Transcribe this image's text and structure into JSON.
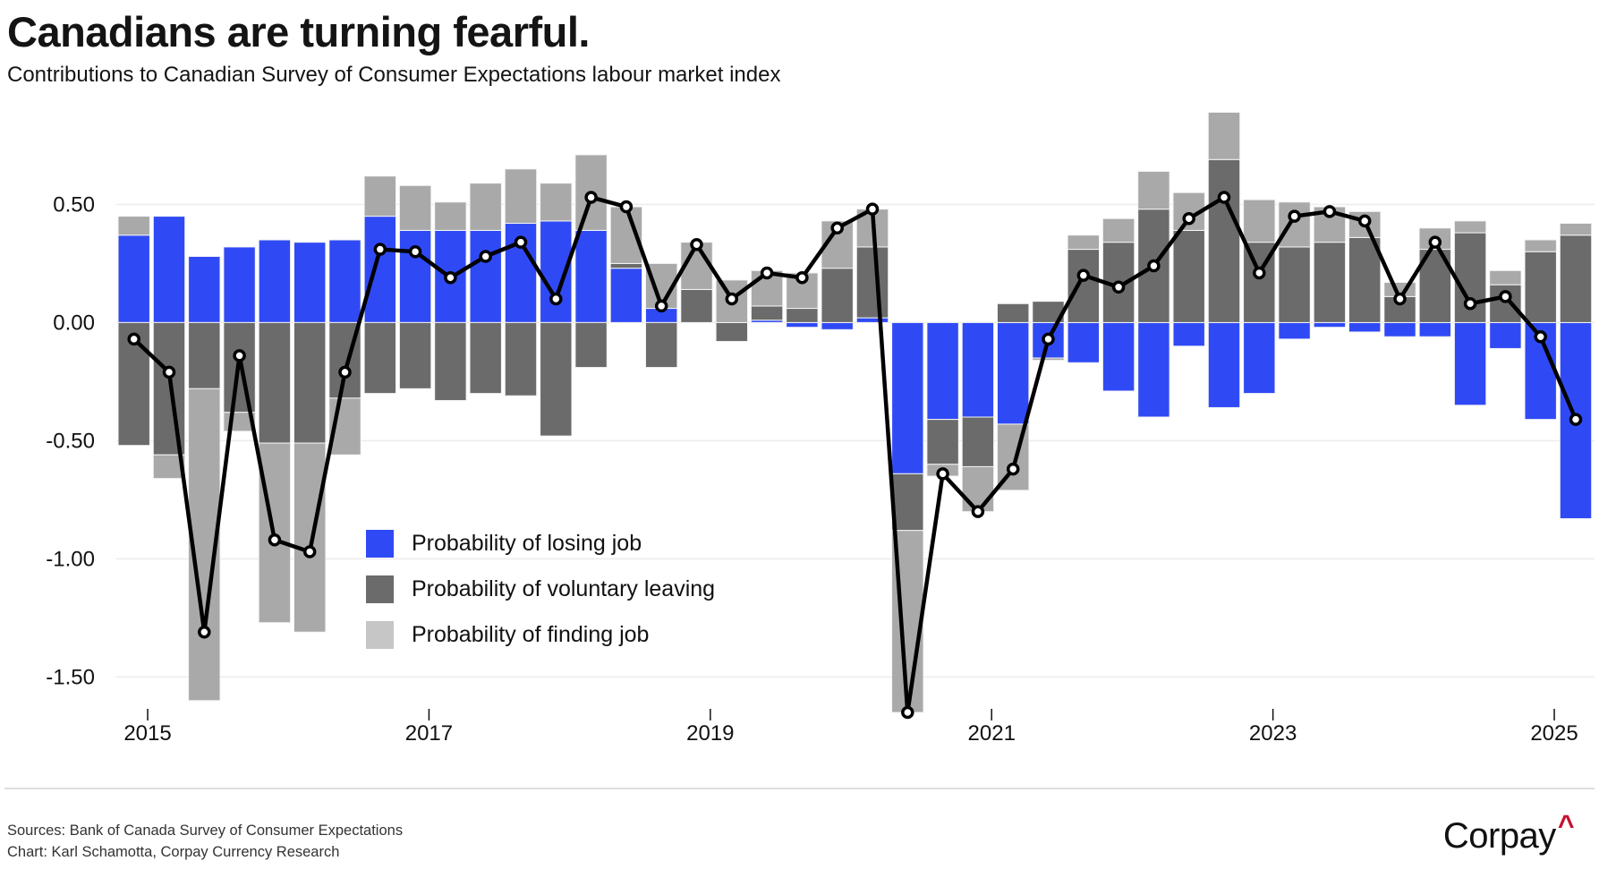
{
  "header": {
    "title": "Canadians are turning fearful.",
    "subtitle": "Contributions to Canadian Survey of Consumer Expectations labour market index"
  },
  "footer": {
    "sources": "Sources: Bank of Canada Survey of Consumer Expectations",
    "credit": "Chart: Karl Schamotta, Corpay Currency Research",
    "logo_text": "Corpay",
    "logo_mark": "^"
  },
  "colors": {
    "losing": "#2f4af5",
    "voluntary": "#6b6b6b",
    "finding": "#a9a9a9",
    "finding_legend": "#c6c6c6",
    "line": "#000000",
    "logo_accent": "#c8102e"
  },
  "chart_data": {
    "type": "bar",
    "stacked": true,
    "title": "Canadians are turning fearful.",
    "subtitle": "Contributions to Canadian Survey of Consumer Expectations labour market index",
    "xlabel": "",
    "ylabel": "",
    "ylim": [
      -1.65,
      0.9
    ],
    "yticks": [
      0.5,
      0.0,
      -0.5,
      -1.0,
      -1.5
    ],
    "ytick_labels": [
      "0.50",
      "0.00",
      "-0.50",
      "-1.00",
      "-1.50"
    ],
    "xtick_labels": [
      "2015",
      "2017",
      "2019",
      "2021",
      "2023",
      "2025"
    ],
    "xtick_positions_index": [
      0.39,
      8.39,
      16.39,
      24.39,
      32.39,
      40.39
    ],
    "grid": true,
    "legend_position": "center-left",
    "categories": [
      "2014Q4",
      "2015Q1",
      "2015Q2",
      "2015Q3",
      "2015Q4",
      "2016Q1",
      "2016Q2",
      "2016Q3",
      "2016Q4",
      "2017Q1",
      "2017Q2",
      "2017Q3",
      "2017Q4",
      "2018Q1",
      "2018Q2",
      "2018Q3",
      "2018Q4",
      "2019Q1",
      "2019Q2",
      "2019Q3",
      "2019Q4",
      "2020Q1",
      "2020Q2",
      "2020Q3",
      "2020Q4",
      "2021Q1",
      "2021Q2",
      "2021Q3",
      "2021Q4",
      "2022Q1",
      "2022Q2",
      "2022Q3",
      "2022Q4",
      "2023Q1",
      "2023Q2",
      "2023Q3",
      "2023Q4",
      "2024Q1",
      "2024Q2",
      "2024Q3",
      "2024Q4",
      "2025Q1"
    ],
    "series": [
      {
        "name": "Probability of losing job",
        "kind": "bar",
        "color_key": "losing",
        "values": [
          0.37,
          0.45,
          0.28,
          0.32,
          0.35,
          0.34,
          0.35,
          0.45,
          0.39,
          0.39,
          0.39,
          0.42,
          0.43,
          0.39,
          0.23,
          0.06,
          0.0,
          0.0,
          0.01,
          -0.02,
          -0.03,
          0.02,
          -0.64,
          -0.41,
          -0.4,
          -0.43,
          -0.15,
          -0.17,
          -0.29,
          -0.4,
          -0.1,
          -0.36,
          -0.3,
          -0.07,
          -0.02,
          -0.04,
          -0.06,
          -0.06,
          -0.35,
          -0.11,
          -0.41,
          -0.83
        ]
      },
      {
        "name": "Probability of voluntary leaving",
        "kind": "bar",
        "color_key": "voluntary",
        "values": [
          -0.52,
          -0.56,
          -0.28,
          -0.38,
          -0.51,
          -0.51,
          -0.32,
          -0.3,
          -0.28,
          -0.33,
          -0.3,
          -0.31,
          -0.48,
          -0.19,
          0.02,
          -0.19,
          0.14,
          -0.08,
          0.06,
          0.06,
          0.23,
          0.3,
          -0.24,
          -0.19,
          -0.21,
          0.08,
          0.09,
          0.31,
          0.34,
          0.48,
          0.39,
          0.69,
          0.34,
          0.32,
          0.34,
          0.36,
          0.11,
          0.31,
          0.38,
          0.16,
          0.3,
          0.37
        ]
      },
      {
        "name": "Probability of finding job",
        "kind": "bar",
        "color_key": "finding",
        "values": [
          0.08,
          -0.1,
          -1.32,
          -0.08,
          -0.76,
          -0.8,
          -0.24,
          0.17,
          0.19,
          0.12,
          0.2,
          0.23,
          0.16,
          0.32,
          0.24,
          0.19,
          0.2,
          0.18,
          0.15,
          0.15,
          0.2,
          0.16,
          -0.77,
          -0.05,
          -0.19,
          -0.28,
          -0.01,
          0.06,
          0.1,
          0.16,
          0.16,
          0.2,
          0.18,
          0.19,
          0.15,
          0.11,
          0.06,
          0.09,
          0.05,
          0.06,
          0.05,
          0.05
        ]
      },
      {
        "name": "Labour market index",
        "kind": "line",
        "color_key": "line",
        "values": [
          -0.07,
          -0.21,
          -1.31,
          -0.14,
          -0.92,
          -0.97,
          -0.21,
          0.31,
          0.3,
          0.19,
          0.28,
          0.34,
          0.1,
          0.53,
          0.49,
          0.07,
          0.33,
          0.1,
          0.21,
          0.19,
          0.4,
          0.48,
          -1.65,
          -0.64,
          -0.8,
          -0.62,
          -0.07,
          0.2,
          0.15,
          0.24,
          0.44,
          0.53,
          0.21,
          0.45,
          0.47,
          0.43,
          0.1,
          0.34,
          0.08,
          0.11,
          -0.06,
          -0.41
        ]
      }
    ],
    "legend": [
      "Probability of losing job",
      "Probability of voluntary leaving",
      "Probability of finding job"
    ]
  }
}
